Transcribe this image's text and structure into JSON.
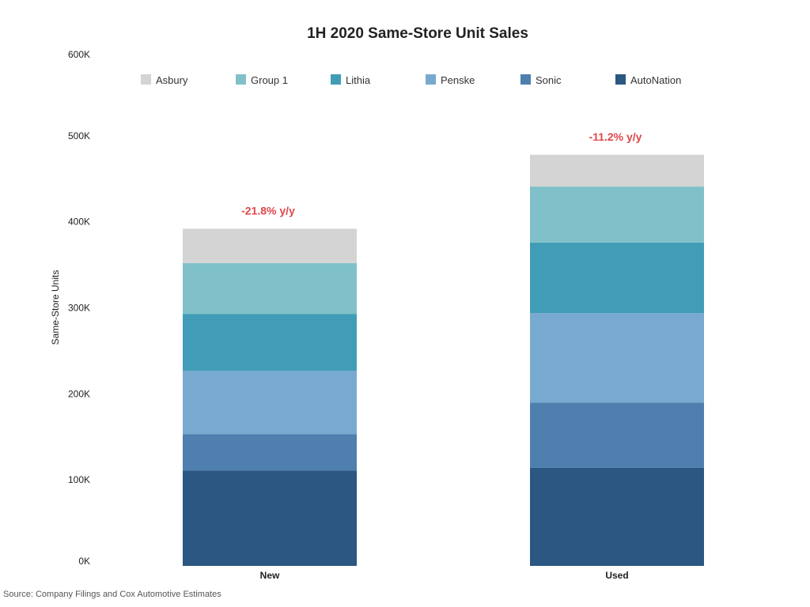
{
  "chart_data": {
    "type": "bar",
    "stacked": true,
    "title": "1H 2020 Same-Store Unit Sales",
    "xlabel": "",
    "ylabel": "Same-Store Units",
    "ylim": [
      0,
      600000
    ],
    "yticks": [
      0,
      100000,
      200000,
      300000,
      400000,
      500000,
      600000
    ],
    "ytick_labels": [
      "0K",
      "100K",
      "200K",
      "300K",
      "400K",
      "500K",
      "600K"
    ],
    "categories": [
      "New",
      "Used"
    ],
    "series": [
      {
        "name": "AutoNation",
        "color": "#2b5782",
        "values": [
          111000,
          114000
        ]
      },
      {
        "name": "Sonic",
        "color": "#4e7fae",
        "values": [
          42000,
          76000
        ]
      },
      {
        "name": "Penske",
        "color": "#78a9cf",
        "values": [
          74000,
          104000
        ]
      },
      {
        "name": "Lithia",
        "color": "#419db7",
        "values": [
          66000,
          82000
        ]
      },
      {
        "name": "Group 1",
        "color": "#80c1c9",
        "values": [
          59000,
          65000
        ]
      },
      {
        "name": "Asbury",
        "color": "#d4d4d4",
        "values": [
          40000,
          37000
        ]
      }
    ],
    "legend_order": [
      "Asbury",
      "Group 1",
      "Lithia",
      "Penske",
      "Sonic",
      "AutoNation"
    ],
    "legend_position": "top",
    "annotations": [
      {
        "category": "New",
        "text": "-21.8% y/y",
        "color": "#e0474c"
      },
      {
        "category": "Used",
        "text": "-11.2% y/y",
        "color": "#e0474c"
      }
    ],
    "grid": false
  },
  "source_note": "Source: Company Filings and Cox Automotive Estimates"
}
